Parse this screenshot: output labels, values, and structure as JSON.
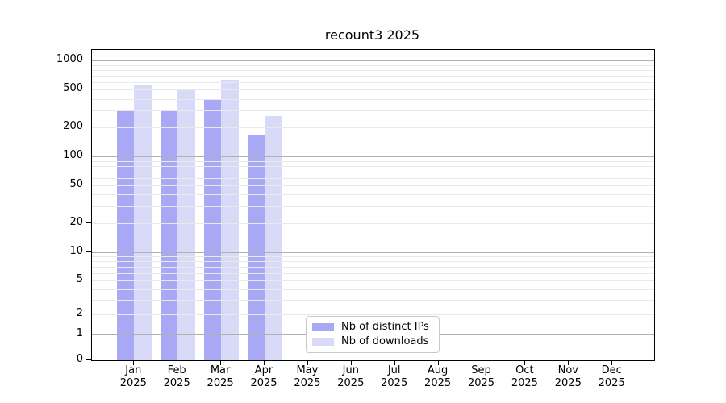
{
  "chart_data": {
    "type": "bar",
    "title": "recount3 2025",
    "categories": [
      "Jan",
      "Feb",
      "Mar",
      "Apr",
      "May",
      "Jun",
      "Jul",
      "Aug",
      "Sep",
      "Oct",
      "Nov",
      "Dec"
    ],
    "x_tick_year": "2025",
    "series": [
      {
        "name": "Nb of distinct IPs",
        "color": "#a8a8f5",
        "values": [
          300,
          310,
          390,
          165,
          null,
          null,
          null,
          null,
          null,
          null,
          null,
          null
        ]
      },
      {
        "name": "Nb of downloads",
        "color": "#d9d9f8",
        "values": [
          560,
          500,
          630,
          265,
          null,
          null,
          null,
          null,
          null,
          null,
          null,
          null
        ]
      }
    ],
    "yaxis": {
      "scale": "asinh",
      "linear_width": 1.5,
      "ylim": [
        0,
        1290
      ],
      "tick_values": [
        0,
        1,
        2,
        5,
        10,
        20,
        50,
        100,
        200,
        500,
        1000
      ],
      "tick_labels": [
        "0",
        "1",
        "2",
        "5",
        "10",
        "20",
        "50",
        "100",
        "200",
        "500",
        "1000"
      ],
      "major_gridlines": [
        1,
        10,
        100,
        1000
      ],
      "minor_gridlines": [
        2,
        3,
        4,
        5,
        6,
        7,
        8,
        9,
        20,
        30,
        40,
        50,
        60,
        70,
        80,
        90,
        200,
        300,
        400,
        500,
        600,
        700,
        800,
        900
      ]
    },
    "grid": {
      "on": true,
      "major_color": "#b0b0b0",
      "minor_color": "#e9e9e9"
    },
    "legend": {
      "position": "lower-center-inside"
    }
  }
}
